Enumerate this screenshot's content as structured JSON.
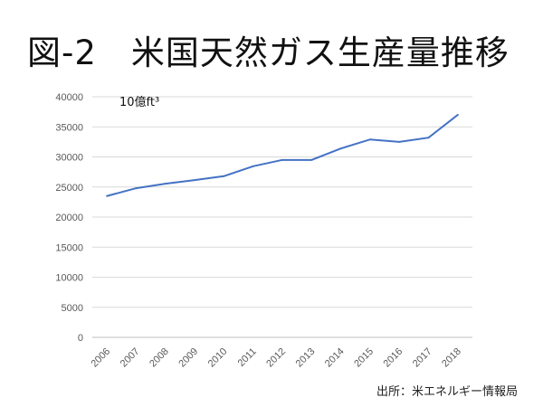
{
  "title": "図-2　米国天然ガス生産量推移",
  "source": "出所：米エネルギー情報局",
  "chart_data": {
    "type": "line",
    "title": "図-2　米国天然ガス生産量推移",
    "unit_label": "10億ft³",
    "categories": [
      "2006",
      "2007",
      "2008",
      "2009",
      "2010",
      "2011",
      "2012",
      "2013",
      "2014",
      "2015",
      "2016",
      "2017",
      "2018"
    ],
    "series": [
      {
        "name": "米国天然ガス生産量",
        "color": "#4472c4",
        "values": [
          23500,
          24800,
          25550,
          26150,
          26800,
          28450,
          29500,
          29500,
          31400,
          32900,
          32500,
          33200,
          37000
        ]
      }
    ],
    "ylim": [
      0,
      40000
    ],
    "yticks": [
      0,
      5000,
      10000,
      15000,
      20000,
      25000,
      30000,
      35000,
      40000
    ],
    "grid": true,
    "xlabel": "",
    "ylabel": ""
  }
}
